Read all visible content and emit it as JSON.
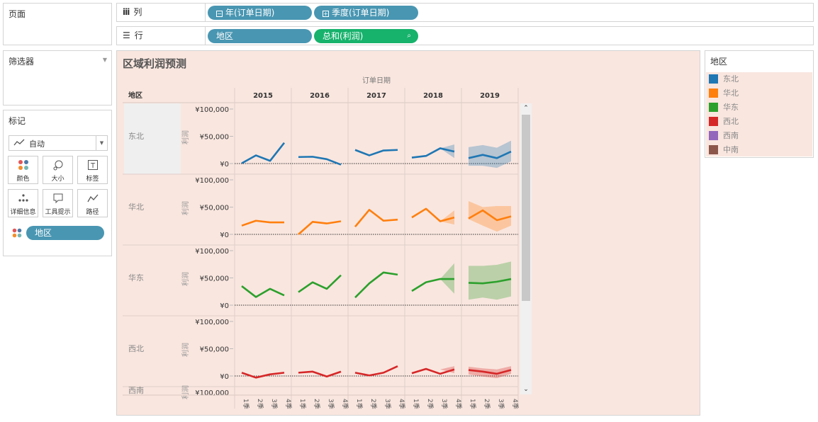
{
  "pages_card": {
    "title": "页面"
  },
  "filters_card": {
    "title": "筛选器"
  },
  "marks_card": {
    "title": "标记",
    "mark_type": "自动",
    "buttons": [
      {
        "label": "颜色",
        "icon": "color-icon"
      },
      {
        "label": "大小",
        "icon": "size-icon"
      },
      {
        "label": "标签",
        "icon": "label-icon"
      },
      {
        "label": "详细信息",
        "icon": "detail-icon"
      },
      {
        "label": "工具提示",
        "icon": "tooltip-icon"
      },
      {
        "label": "路径",
        "icon": "path-icon"
      }
    ],
    "color_field": "地区"
  },
  "columns_shelf": {
    "label": "列",
    "pills": [
      "年(订单日期)",
      "季度(订单日期)"
    ]
  },
  "rows_shelf": {
    "label": "行",
    "pills": [
      "地区",
      "总和(利润)"
    ]
  },
  "view": {
    "title": "区域利润预测",
    "column_header": "订单日期",
    "row_header": "地区",
    "axis_label": "利润"
  },
  "legend": {
    "title": "地区",
    "items": [
      {
        "label": "东北",
        "color": "#1f77b4"
      },
      {
        "label": "华北",
        "color": "#ff7f0e"
      },
      {
        "label": "华东",
        "color": "#2ca02c"
      },
      {
        "label": "西北",
        "color": "#d62728"
      },
      {
        "label": "西南",
        "color": "#9467bd"
      },
      {
        "label": "中南",
        "color": "#8c564b"
      }
    ]
  },
  "chart_data": {
    "type": "line",
    "title": "区域利润预测",
    "x_header": "订单日期",
    "years": [
      "2015",
      "2016",
      "2017",
      "2018",
      "2019"
    ],
    "quarters": [
      "1季",
      "2季",
      "3季",
      "4季"
    ],
    "y_label": "利润",
    "y_ticks": [
      "¥100,000",
      "¥50,000",
      "¥0"
    ],
    "ylim": [
      0,
      100000
    ],
    "rows": [
      {
        "region": "东北",
        "color": "#1f77b4",
        "values": [
          [
            500,
            15000,
            5000,
            38000
          ],
          [
            12000,
            12500,
            8000,
            -2000
          ],
          [
            25000,
            15000,
            24000,
            25000
          ],
          [
            11000,
            14000,
            28000,
            22000
          ],
          [
            10000,
            16000,
            10000,
            22000
          ]
        ],
        "forecast_from": 14,
        "band_upper": [
          28000,
          35000,
          30000,
          34000,
          29000,
          42000
        ],
        "band_lower": [
          28000,
          10000,
          -5000,
          -8000,
          -4000,
          -4000,
          -8000,
          4000
        ]
      },
      {
        "region": "华北",
        "color": "#ff7f0e",
        "values": [
          [
            16000,
            25000,
            22000,
            22000
          ],
          [
            0,
            23000,
            20000,
            24000
          ],
          [
            14000,
            45000,
            25000,
            27000
          ],
          [
            31000,
            47000,
            24000,
            31000
          ],
          [
            29000,
            44000,
            26000,
            33000
          ]
        ],
        "forecast_from": 14,
        "band_upper": [
          24000,
          44000,
          51000,
          61000,
          50000,
          52000,
          52000
        ],
        "band_lower": [
          24000,
          18000,
          15000,
          28000,
          16000,
          5000,
          16000
        ]
      },
      {
        "region": "华东",
        "color": "#2ca02c",
        "values": [
          [
            35000,
            15000,
            30000,
            18000
          ],
          [
            24000,
            42000,
            30000,
            55000
          ],
          [
            14000,
            40000,
            60000,
            56000
          ],
          [
            26000,
            42000,
            48000,
            48000
          ],
          [
            41000,
            40000,
            43000,
            48000
          ]
        ],
        "forecast_from": 14,
        "band_upper": [
          48000,
          77000,
          72000,
          72000,
          74000,
          80000
        ],
        "band_lower": [
          48000,
          21000,
          10000,
          14000,
          10000,
          16000
        ]
      },
      {
        "region": "西北",
        "color": "#d62728",
        "values": [
          [
            6000,
            -3000,
            3000,
            6000
          ],
          [
            6000,
            8000,
            -1000,
            8000
          ],
          [
            6000,
            1000,
            6000,
            18000
          ],
          [
            5000,
            13000,
            4000,
            12000
          ],
          [
            11000,
            8000,
            4000,
            11000
          ]
        ],
        "forecast_from": 14,
        "band_upper": [
          12000,
          18000,
          17000,
          14000,
          12000,
          18000
        ],
        "band_lower": [
          12000,
          5000,
          3000,
          -1000,
          -4000,
          4000
        ]
      }
    ],
    "partial_row": "西南"
  }
}
